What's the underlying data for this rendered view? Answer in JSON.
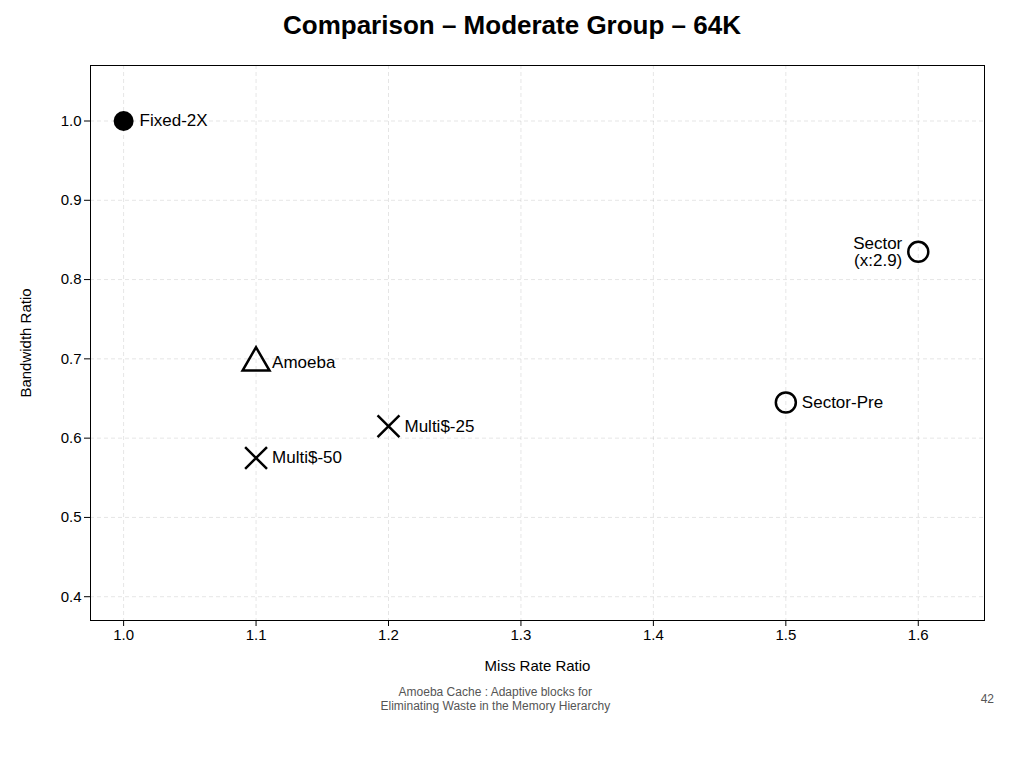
{
  "chart_data": {
    "type": "scatter",
    "title": "Comparison – Moderate Group – 64K",
    "x_label": "Miss Rate Ratio",
    "y_label": "Bandwidth Ratio",
    "xlim": [
      0.975,
      1.65
    ],
    "ylim": [
      0.37,
      1.07
    ],
    "xticks": [
      {
        "value": 1.0,
        "label": "1.0"
      },
      1.1,
      1.2,
      1.3,
      1.4,
      1.5,
      1.6
    ],
    "yticks": [
      0.4,
      0.5,
      0.6,
      0.7,
      0.8,
      0.9,
      {
        "value": 1.0,
        "label": "1.0"
      }
    ],
    "grid": true,
    "points": [
      {
        "x": 1.0,
        "y": 1.0,
        "label": "Fixed-2X",
        "marker": "filled circle"
      },
      {
        "x": 1.1,
        "y": 0.695,
        "label": "Amoeba",
        "marker": "open triangle"
      },
      {
        "x": 1.1,
        "y": 0.575,
        "label": "Multi$-50",
        "marker": "x"
      },
      {
        "x": 1.2,
        "y": 0.615,
        "label": "Multi$-25",
        "marker": "x"
      },
      {
        "x": 1.6,
        "y": 0.835,
        "label": "Sector\n(x:2.9)",
        "marker": "open circle"
      },
      {
        "x": 1.5,
        "y": 0.645,
        "label": "Sector-Pre",
        "marker": "open circle"
      }
    ],
    "footnote": "Amoeba Cache : Adaptive blocks for\nEliminating Waste in the Memory Hierarchy",
    "page_number": "42"
  }
}
